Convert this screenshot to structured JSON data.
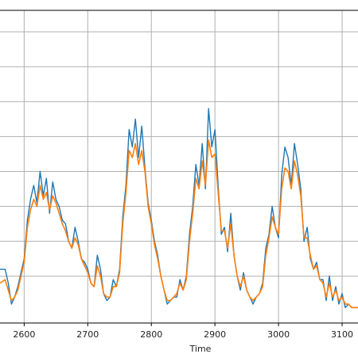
{
  "chart_data": {
    "type": "line",
    "title": "",
    "xlabel": "Time",
    "ylabel": "",
    "xlim": [
      2562,
      3125
    ],
    "ylim": [
      0,
      8
    ],
    "grid": true,
    "x_ticks": [
      2600,
      2700,
      2800,
      2900,
      3000,
      3100
    ],
    "x_tick_labels": [
      "2600",
      "2700",
      "2800",
      "2900",
      "3000",
      "3100"
    ],
    "y_gridlines": [
      1,
      2,
      3,
      4,
      5,
      6,
      7,
      8
    ],
    "series": [
      {
        "color": "#1f77b4",
        "x": [
          2562,
          2570,
          2575,
          2580,
          2585,
          2590,
          2595,
          2600,
          2605,
          2610,
          2615,
          2620,
          2625,
          2630,
          2635,
          2640,
          2645,
          2650,
          2655,
          2660,
          2665,
          2670,
          2675,
          2680,
          2685,
          2690,
          2695,
          2700,
          2705,
          2710,
          2715,
          2720,
          2725,
          2730,
          2735,
          2740,
          2745,
          2750,
          2755,
          2760,
          2765,
          2770,
          2775,
          2780,
          2785,
          2790,
          2795,
          2800,
          2805,
          2810,
          2815,
          2820,
          2825,
          2830,
          2835,
          2840,
          2845,
          2850,
          2855,
          2860,
          2865,
          2870,
          2875,
          2880,
          2885,
          2890,
          2895,
          2900,
          2905,
          2910,
          2915,
          2920,
          2925,
          2930,
          2935,
          2940,
          2945,
          2950,
          2955,
          2960,
          2965,
          2970,
          2975,
          2980,
          2985,
          2990,
          2995,
          3000,
          3005,
          3010,
          3015,
          3020,
          3025,
          3030,
          3035,
          3040,
          3045,
          3050,
          3055,
          3060,
          3065,
          3070,
          3075,
          3080,
          3085,
          3090,
          3095,
          3100,
          3105,
          3110,
          3115,
          3120,
          3125
        ],
        "y": [
          1.2,
          1.2,
          0.8,
          0.2,
          0.4,
          0.7,
          1.1,
          1.5,
          2.6,
          3.2,
          3.6,
          3.1,
          4.0,
          3.3,
          3.8,
          2.8,
          3.7,
          3.2,
          3.0,
          2.6,
          2.5,
          2.0,
          1.8,
          2.4,
          2.0,
          1.5,
          1.4,
          1.2,
          0.8,
          0.7,
          1.6,
          1.2,
          0.5,
          0.3,
          0.4,
          0.9,
          0.7,
          1.2,
          2.7,
          3.6,
          5.2,
          4.7,
          5.5,
          4.4,
          5.3,
          4.1,
          3.1,
          2.6,
          2.0,
          1.6,
          1.0,
          0.6,
          0.2,
          0.3,
          0.4,
          0.4,
          0.9,
          0.6,
          1.0,
          2.2,
          3.0,
          4.2,
          3.6,
          4.8,
          3.5,
          5.8,
          4.7,
          5.2,
          3.6,
          2.2,
          2.4,
          1.7,
          2.8,
          1.6,
          1.0,
          0.6,
          1.1,
          0.6,
          0.4,
          0.2,
          0.4,
          0.5,
          0.8,
          1.8,
          2.2,
          3.0,
          2.4,
          2.1,
          3.9,
          4.7,
          4.4,
          3.6,
          4.8,
          4.2,
          3.5,
          2.0,
          2.4,
          1.5,
          1.2,
          1.4,
          0.9,
          0.9,
          0.3,
          1.0,
          0.3,
          0.7,
          0.2,
          0.5,
          0.1,
          0.2,
          0.1,
          0.1,
          0.1
        ]
      },
      {
        "color": "#ff7f0e",
        "x": [
          2562,
          2570,
          2575,
          2580,
          2585,
          2590,
          2595,
          2600,
          2605,
          2610,
          2615,
          2620,
          2625,
          2630,
          2635,
          2640,
          2645,
          2650,
          2655,
          2660,
          2665,
          2670,
          2675,
          2680,
          2685,
          2690,
          2695,
          2700,
          2705,
          2710,
          2715,
          2720,
          2725,
          2730,
          2735,
          2740,
          2745,
          2750,
          2755,
          2760,
          2765,
          2770,
          2775,
          2780,
          2785,
          2790,
          2795,
          2800,
          2805,
          2810,
          2815,
          2820,
          2825,
          2830,
          2835,
          2840,
          2845,
          2850,
          2855,
          2860,
          2865,
          2870,
          2875,
          2880,
          2885,
          2890,
          2895,
          2900,
          2905,
          2910,
          2915,
          2920,
          2925,
          2930,
          2935,
          2940,
          2945,
          2950,
          2955,
          2960,
          2965,
          2970,
          2975,
          2980,
          2985,
          2990,
          2995,
          3000,
          3005,
          3010,
          3015,
          3020,
          3025,
          3030,
          3035,
          3040,
          3045,
          3050,
          3055,
          3060,
          3065,
          3070,
          3075,
          3080,
          3085,
          3090,
          3095,
          3100,
          3105,
          3110,
          3115,
          3120,
          3125
        ],
        "y": [
          0.8,
          0.9,
          0.6,
          0.3,
          0.4,
          0.6,
          1.0,
          1.4,
          2.4,
          2.9,
          3.2,
          3.0,
          3.6,
          3.2,
          3.4,
          2.9,
          3.3,
          3.1,
          2.8,
          2.5,
          2.3,
          2.0,
          1.8,
          2.1,
          1.9,
          1.5,
          1.3,
          1.1,
          0.8,
          0.7,
          1.3,
          1.0,
          0.5,
          0.4,
          0.4,
          0.7,
          0.7,
          1.1,
          2.5,
          3.4,
          4.6,
          4.4,
          4.8,
          4.2,
          4.6,
          4.0,
          3.0,
          2.5,
          1.9,
          1.5,
          1.0,
          0.6,
          0.3,
          0.3,
          0.4,
          0.5,
          0.8,
          0.6,
          0.9,
          2.0,
          2.8,
          3.8,
          3.5,
          4.3,
          3.6,
          4.9,
          4.4,
          4.5,
          3.4,
          2.3,
          2.3,
          1.8,
          2.5,
          1.6,
          1.0,
          0.7,
          1.0,
          0.6,
          0.4,
          0.3,
          0.4,
          0.5,
          0.7,
          1.6,
          2.1,
          2.7,
          2.4,
          2.2,
          3.5,
          4.1,
          4.0,
          3.5,
          4.3,
          3.9,
          3.3,
          2.1,
          2.1,
          1.6,
          1.2,
          1.3,
          0.9,
          0.8,
          0.4,
          0.8,
          0.4,
          0.6,
          0.3,
          0.4,
          0.2,
          0.2,
          0.1,
          0.1,
          0.1
        ]
      }
    ]
  }
}
